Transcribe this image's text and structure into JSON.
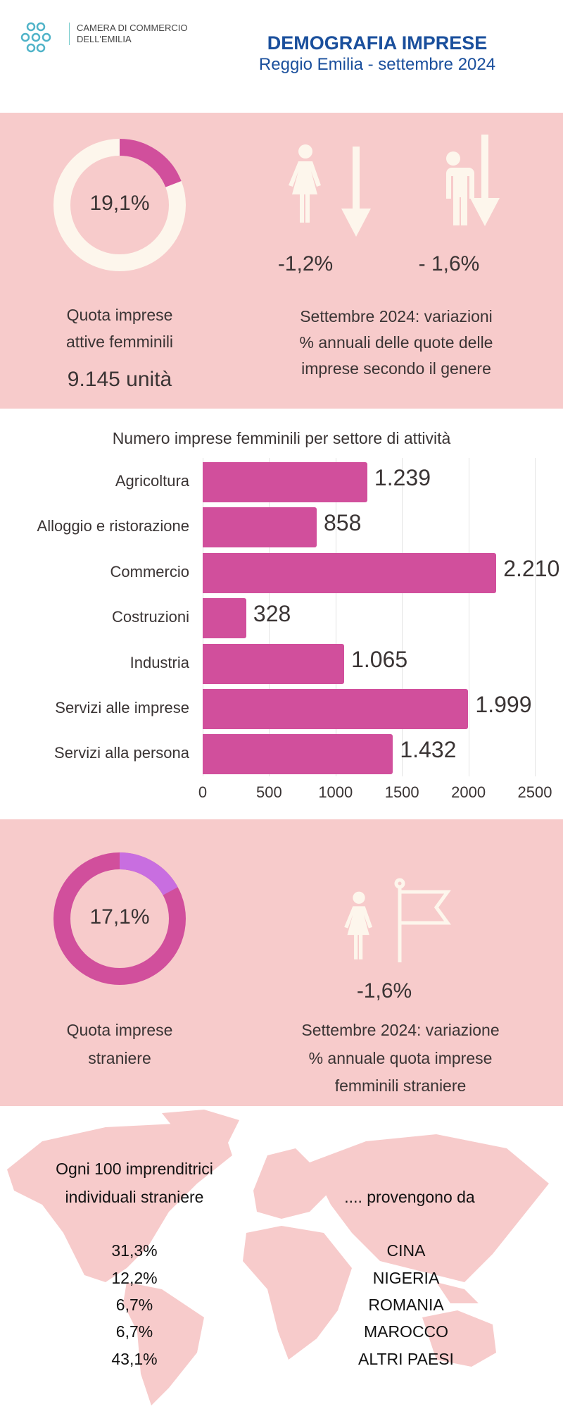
{
  "header": {
    "org_line1": "CAMERA DI COMMERCIO",
    "org_line2": "DELL'EMILIA",
    "title": "DEMOGRAFIA IMPRESE",
    "subtitle": "Reggio Emilia - settembre 2024"
  },
  "section1": {
    "donut_value": "19,1%",
    "donut_fraction": 0.191,
    "label_line1": "Quota imprese",
    "label_line2": "attive femminili",
    "units": "9.145 unità",
    "female_change": "-1,2%",
    "male_change": "- 1,6%",
    "desc_lines": [
      "Settembre 2024: variazioni",
      "% annuali delle quote delle",
      "imprese secondo il genere"
    ]
  },
  "chart_data": {
    "type": "bar",
    "orientation": "horizontal",
    "title": "Numero imprese femminili per settore di attività",
    "categories": [
      "Agricoltura",
      "Alloggio e ristorazione",
      "Commercio",
      "Costruzioni",
      "Industria",
      "Servizi alle imprese",
      "Servizi alla persona"
    ],
    "values": [
      1239,
      858,
      2210,
      328,
      1065,
      1999,
      1432
    ],
    "value_labels": [
      "1.239",
      "858",
      "2.210",
      "328",
      "1.065",
      "1.999",
      "1.432"
    ],
    "xlim": [
      0,
      2500
    ],
    "xticks": [
      "0",
      "500",
      "1000",
      "1500",
      "2000",
      "2500"
    ],
    "grid": true,
    "color": "#d14f9c"
  },
  "section2": {
    "donut_value": "17,1%",
    "donut_fraction": 0.171,
    "label_line1": "Quota imprese",
    "label_line2": "straniere",
    "change": "-1,6%",
    "desc_lines": [
      "Settembre 2024: variazione",
      "% annuale quota imprese",
      "femminili straniere"
    ]
  },
  "section3": {
    "left_line1": "Ogni 100 imprenditrici",
    "left_line2": "individuali straniere",
    "right_title": ".... provengono da",
    "rows": [
      {
        "pct": "31,3%",
        "country": "CINA"
      },
      {
        "pct": "12,2%",
        "country": "NIGERIA"
      },
      {
        "pct": "6,7%",
        "country": "ROMANIA"
      },
      {
        "pct": "6,7%",
        "country": "MAROCCO"
      },
      {
        "pct": "43,1%",
        "country": "ALTRI PAESI"
      }
    ]
  },
  "colors": {
    "pink_bg": "#f7cbcb",
    "accent": "#d14f9c",
    "cream": "#fdf6ec",
    "purple": "#c86ee0",
    "blue": "#1a4f9c"
  }
}
